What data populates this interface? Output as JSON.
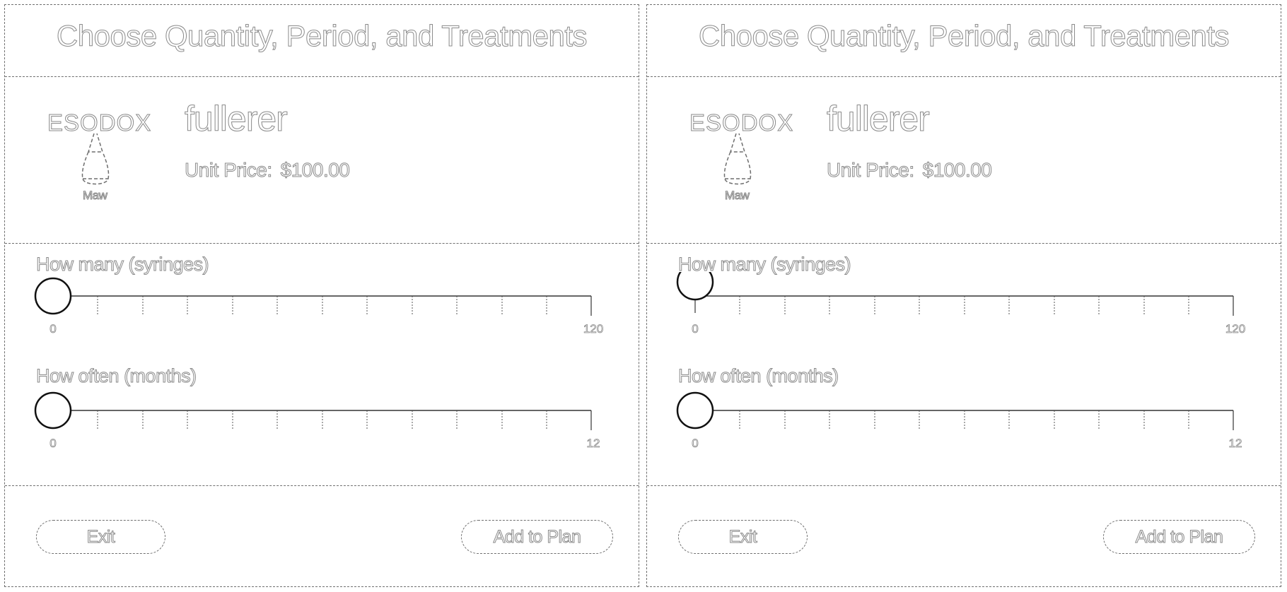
{
  "screens": [
    {
      "title": "Choose Quantity, Period, and Treatments",
      "product": {
        "brand_logo": "ESODOX",
        "logo_caption": "Maw",
        "name": "fullerer",
        "unit_price_label": "Unit Price:",
        "unit_price": "$100.00"
      },
      "quantity_slider": {
        "label": "How many (syringes)",
        "min": 0,
        "max": 120,
        "min_label": "0",
        "max_label": "120",
        "value": 0
      },
      "period_slider": {
        "label": "How often (months)",
        "min": 0,
        "max": 12,
        "min_label": "0",
        "max_label": "12",
        "value": 0
      },
      "buttons": {
        "exit_label": "Exit",
        "add_label": "Add to Plan"
      }
    },
    {
      "title": "Choose Quantity, Period, and Treatments",
      "product": {
        "brand_logo": "ESODOX",
        "logo_caption": "Maw",
        "name": "fullerer",
        "unit_price_label": "Unit Price:",
        "unit_price": "$100.00"
      },
      "quantity_slider": {
        "label": "How many (syringes)",
        "min": 0,
        "max": 120,
        "min_label": "0",
        "max_label": "120",
        "value": 0
      },
      "period_slider": {
        "label": "How often (months)",
        "min": 0,
        "max": 12,
        "min_label": "0",
        "max_label": "12",
        "value": 0
      },
      "buttons": {
        "exit_label": "Exit",
        "add_label": "Add to Plan"
      }
    }
  ]
}
